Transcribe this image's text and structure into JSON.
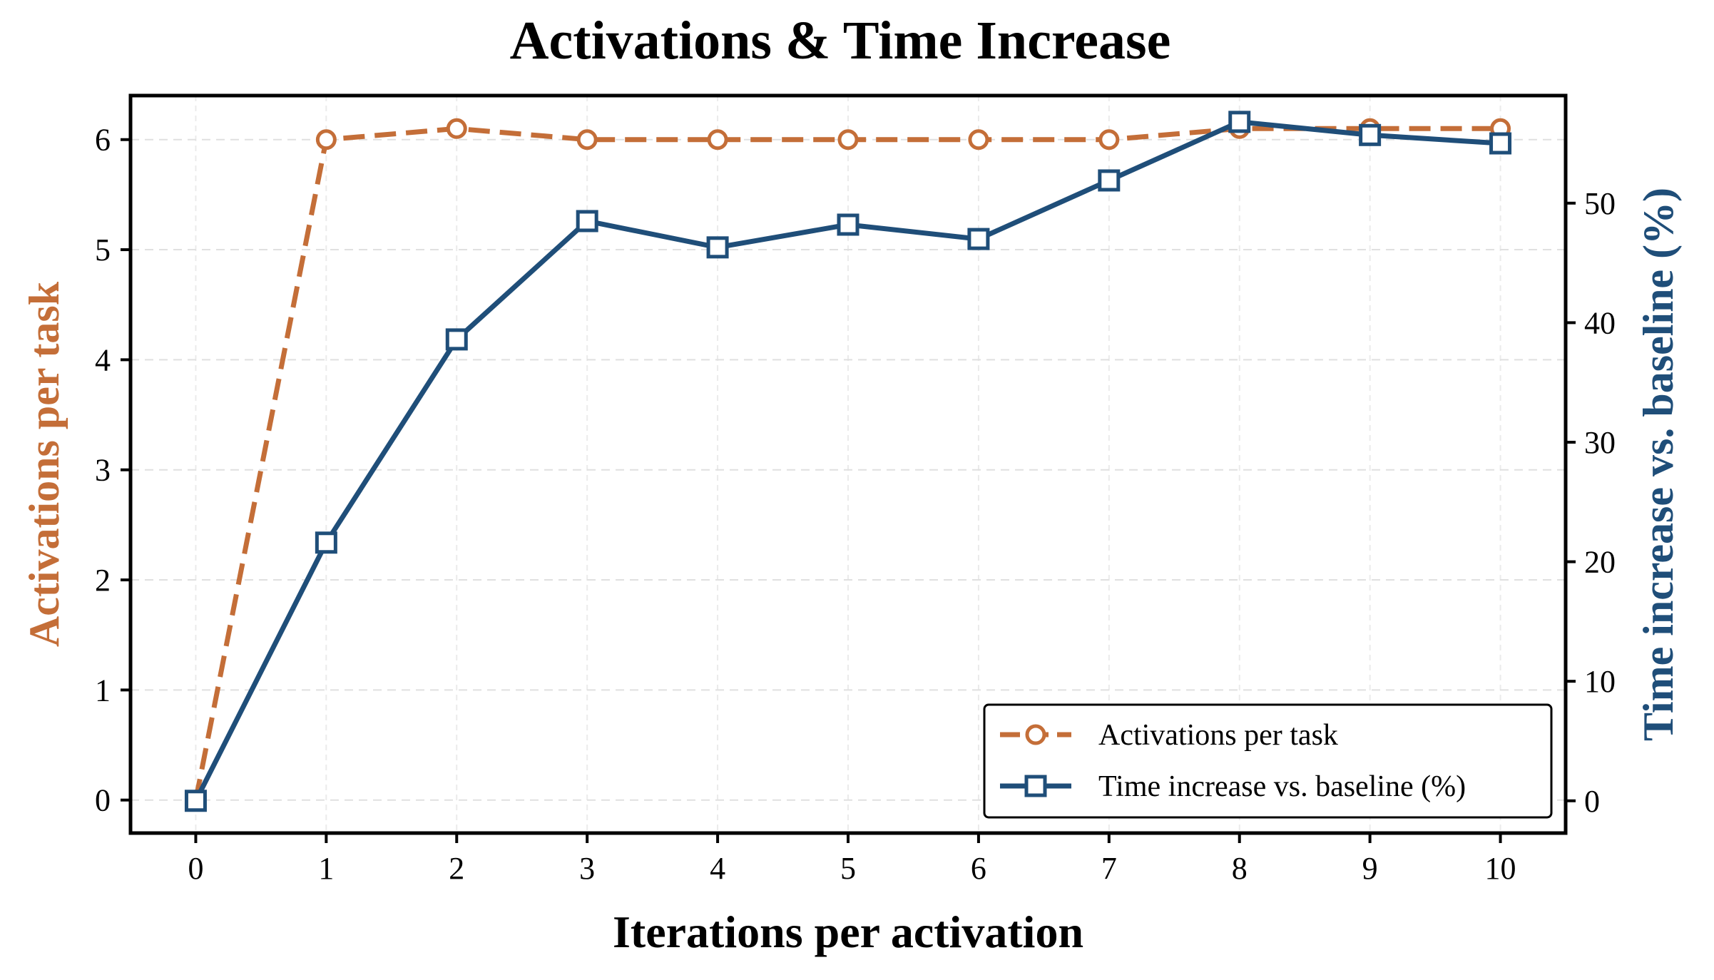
{
  "chart_data": {
    "type": "line",
    "title": "Activations & Time Increase",
    "xlabel": "Iterations per activation",
    "ylabel_left": "Activations per task",
    "ylabel_right": "Time increase vs. baseline (%)",
    "x": [
      0,
      1,
      2,
      3,
      4,
      5,
      6,
      7,
      8,
      9,
      10
    ],
    "xlim": [
      -0.5,
      10.5
    ],
    "ylim_left": [
      -0.3,
      6.4
    ],
    "ylim_right": [
      -2.7,
      59.0
    ],
    "yticks_left": [
      0,
      1,
      2,
      3,
      4,
      5,
      6
    ],
    "yticks_right": [
      0,
      10,
      20,
      30,
      40,
      50
    ],
    "grid": true,
    "legend_position": "lower-right",
    "series": [
      {
        "name": "Activations per task",
        "axis": "left",
        "color": "#C46E38",
        "line_style": "dashed",
        "marker": "circle",
        "values": [
          0.0,
          6.0,
          6.1,
          6.0,
          6.0,
          6.0,
          6.0,
          6.0,
          6.1,
          6.1,
          6.1
        ]
      },
      {
        "name": "Time increase vs. baseline (%)",
        "axis": "right",
        "color": "#1F4E79",
        "line_style": "solid",
        "marker": "square",
        "values": [
          0.0,
          21.6,
          38.6,
          48.5,
          46.3,
          48.2,
          47.0,
          51.9,
          56.8,
          55.7,
          55.0
        ]
      }
    ]
  }
}
